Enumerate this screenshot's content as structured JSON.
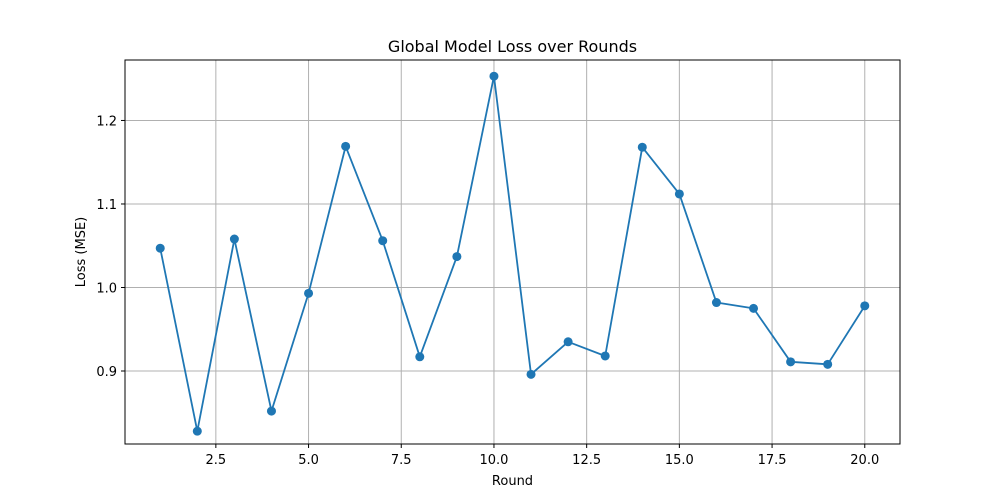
{
  "chart_data": {
    "type": "line",
    "title": "Global Model Loss over Rounds",
    "xlabel": "Round",
    "ylabel": "Loss (MSE)",
    "xlim": [
      0.05,
      20.95
    ],
    "ylim": [
      0.8126,
      1.2724
    ],
    "xticks": [
      2.5,
      5.0,
      7.5,
      10.0,
      12.5,
      15.0,
      17.5,
      20.0
    ],
    "xtick_labels": [
      "2.5",
      "5.0",
      "7.5",
      "10.0",
      "12.5",
      "15.0",
      "17.5",
      "20.0"
    ],
    "yticks": [
      0.9,
      1.0,
      1.1,
      1.2
    ],
    "ytick_labels": [
      "0.9",
      "1.0",
      "1.1",
      "1.2"
    ],
    "grid": true,
    "color": "#1f77b4",
    "marker": "circle",
    "series": [
      {
        "x": [
          1,
          2,
          3,
          4,
          5,
          6,
          7,
          8,
          9,
          10,
          11,
          12,
          13,
          14,
          15,
          16,
          17,
          18,
          19,
          20
        ],
        "y": [
          1.047,
          0.828,
          1.058,
          0.852,
          0.993,
          1.169,
          1.056,
          0.917,
          1.037,
          1.253,
          0.896,
          0.935,
          0.918,
          1.168,
          1.112,
          0.982,
          0.975,
          0.911,
          0.908,
          0.978
        ]
      }
    ]
  }
}
